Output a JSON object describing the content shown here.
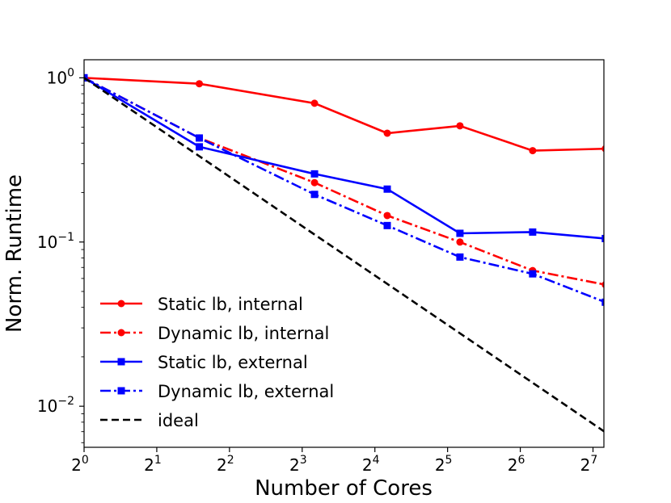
{
  "chart_data": {
    "type": "line",
    "title": "",
    "xlabel": "Number of Cores",
    "ylabel": "Norm. Runtime",
    "xscale": "log2",
    "yscale": "log10",
    "xlim_log2": [
      0,
      7.15
    ],
    "ylim_log10": [
      -2.25,
      0.11
    ],
    "x_ticks": [
      {
        "exp": 0,
        "base": "2",
        "sup": "0"
      },
      {
        "exp": 1,
        "base": "2",
        "sup": "1"
      },
      {
        "exp": 2,
        "base": "2",
        "sup": "2"
      },
      {
        "exp": 3,
        "base": "2",
        "sup": "3"
      },
      {
        "exp": 4,
        "base": "2",
        "sup": "4"
      },
      {
        "exp": 5,
        "base": "2",
        "sup": "5"
      },
      {
        "exp": 6,
        "base": "2",
        "sup": "6"
      },
      {
        "exp": 7,
        "base": "2",
        "sup": "7"
      }
    ],
    "y_ticks": [
      {
        "exp": 0,
        "base": "10",
        "sup": "0"
      },
      {
        "exp": -1,
        "base": "10",
        "sup": "−1"
      },
      {
        "exp": -2,
        "base": "10",
        "sup": "−2"
      }
    ],
    "x": [
      1,
      3,
      9,
      18,
      36,
      72,
      144
    ],
    "series": [
      {
        "name": "Static lb, internal",
        "color": "#ff0000",
        "dash": "solid",
        "marker": "circle",
        "values": [
          1.0,
          0.92,
          0.7,
          0.46,
          0.51,
          0.36,
          0.37
        ]
      },
      {
        "name": "Dynamic lb, internal",
        "color": "#ff0000",
        "dash": "dashdot",
        "marker": "circle",
        "values": [
          1.0,
          0.43,
          0.23,
          0.145,
          0.1,
          0.067,
          0.055
        ]
      },
      {
        "name": "Static lb, external",
        "color": "#0000ff",
        "dash": "solid",
        "marker": "square",
        "values": [
          1.0,
          0.38,
          0.26,
          0.21,
          0.113,
          0.115,
          0.105
        ]
      },
      {
        "name": "Dynamic lb, external",
        "color": "#0000ff",
        "dash": "dashdot",
        "marker": "square",
        "values": [
          1.0,
          0.43,
          0.195,
          0.126,
          0.081,
          0.064,
          0.043
        ]
      },
      {
        "name": "ideal",
        "color": "#000000",
        "dash": "dashed",
        "marker": "none",
        "values": [
          1.0,
          0.3333,
          0.1111,
          0.0556,
          0.0278,
          0.0139,
          0.00694
        ]
      }
    ],
    "legend_position": "lower-left",
    "grid": false
  }
}
